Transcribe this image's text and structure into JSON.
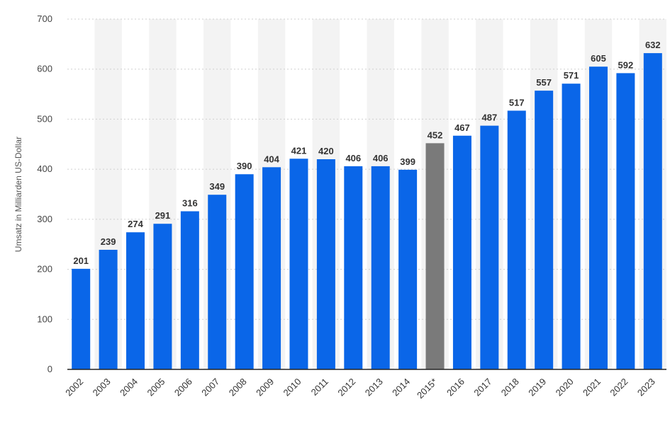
{
  "chart_data": {
    "type": "bar",
    "ylabel": "Umsatz in Milliarden US-Dollar",
    "xlabel": "",
    "title": "",
    "ylim": [
      0,
      700
    ],
    "yticks": [
      0,
      100,
      200,
      300,
      400,
      500,
      600,
      700
    ],
    "grid": true,
    "categories": [
      "2002",
      "2003",
      "2004",
      "2005",
      "2006",
      "2007",
      "2008",
      "2009",
      "2010",
      "2011",
      "2012",
      "2013",
      "2014",
      "2015*",
      "2016",
      "2017",
      "2018",
      "2019",
      "2020",
      "2021",
      "2022",
      "2023"
    ],
    "values": [
      201,
      239,
      274,
      291,
      316,
      349,
      390,
      404,
      421,
      420,
      406,
      406,
      399,
      452,
      467,
      487,
      517,
      557,
      571,
      605,
      592,
      632
    ],
    "value_labels": [
      "201",
      "239",
      "274",
      "291",
      "316",
      "349",
      "390",
      "404",
      "421",
      "420",
      "406",
      "406",
      "399",
      "452",
      "467",
      "487",
      "517",
      "557",
      "571",
      "605",
      "592",
      "632"
    ],
    "colors": {
      "bar": "#0a66e8",
      "highlight": "#7a7a7a",
      "band": "#f3f3f3"
    },
    "highlight_categories": [
      "2015*"
    ]
  }
}
